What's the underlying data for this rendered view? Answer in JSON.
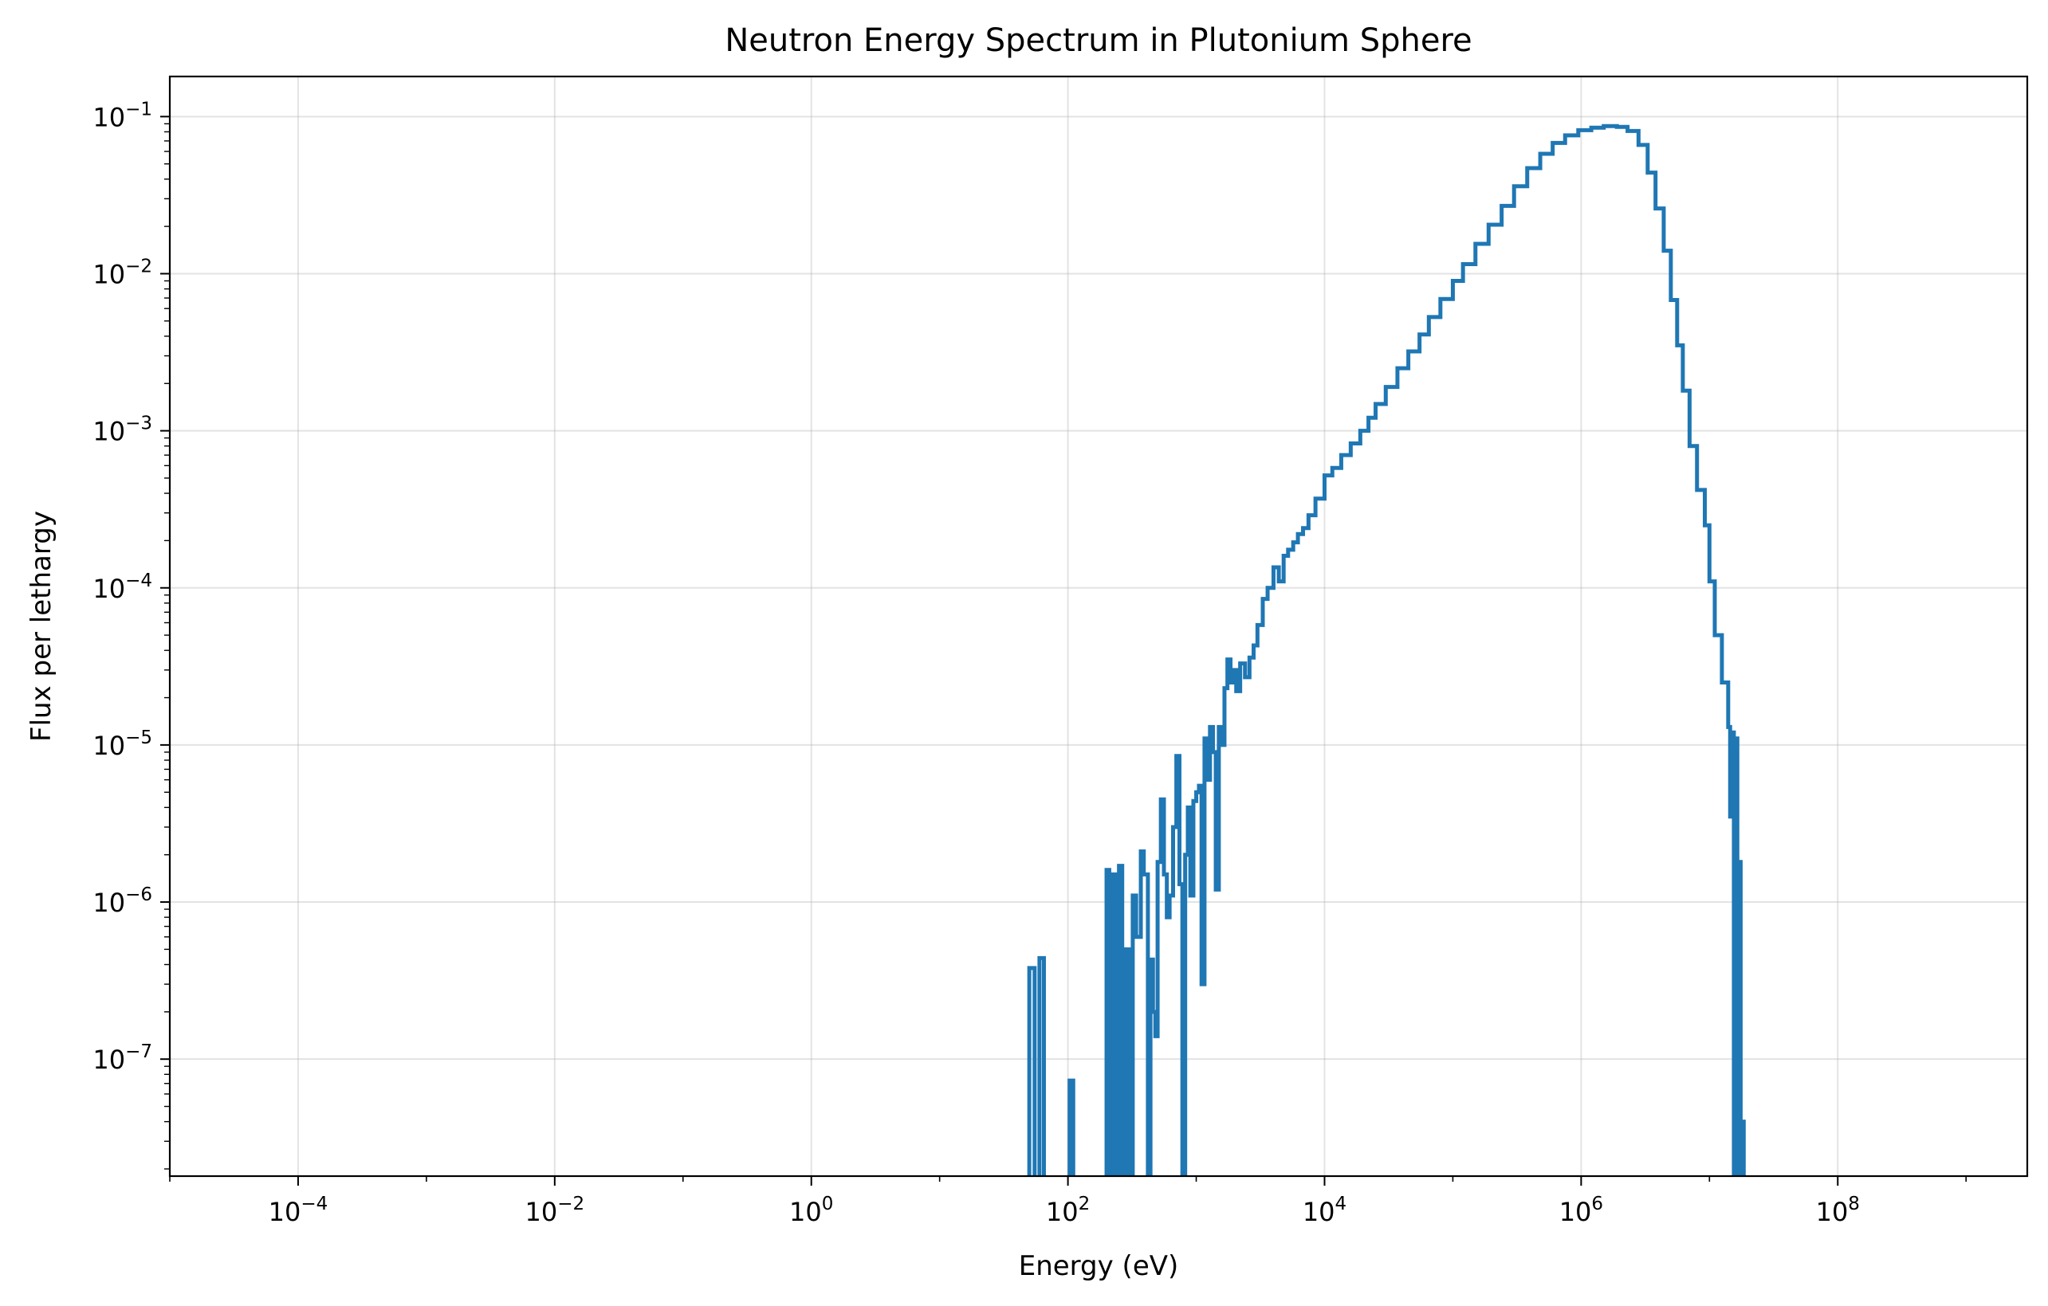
{
  "chart_data": {
    "type": "line",
    "title": "Neutron Energy Spectrum in Plutonium Sphere",
    "xlabel": "Energy (eV)",
    "ylabel": "Flux per lethargy",
    "xscale": "log",
    "yscale": "log",
    "xlim": [
      1e-05,
      3000000000.0
    ],
    "ylim": [
      1.8e-08,
      0.18
    ],
    "grid": true,
    "line_color": "#1f77b4",
    "x_ticks": [
      {
        "base": "10",
        "exp": "−4",
        "value": 0.0001
      },
      {
        "base": "10",
        "exp": "−2",
        "value": 0.01
      },
      {
        "base": "10",
        "exp": "0",
        "value": 1
      },
      {
        "base": "10",
        "exp": "2",
        "value": 100
      },
      {
        "base": "10",
        "exp": "4",
        "value": 10000
      },
      {
        "base": "10",
        "exp": "6",
        "value": 1000000
      },
      {
        "base": "10",
        "exp": "8",
        "value": 100000000
      }
    ],
    "y_ticks": [
      {
        "base": "10",
        "exp": "−1",
        "value": 0.1
      },
      {
        "base": "10",
        "exp": "−2",
        "value": 0.01
      },
      {
        "base": "10",
        "exp": "−3",
        "value": 0.001
      },
      {
        "base": "10",
        "exp": "−4",
        "value": 0.0001
      },
      {
        "base": "10",
        "exp": "−5",
        "value": 1e-05
      },
      {
        "base": "10",
        "exp": "−6",
        "value": 1e-06
      },
      {
        "base": "10",
        "exp": "−7",
        "value": 1e-07
      }
    ],
    "series": [
      {
        "values": [
          [
            50,
            0
          ],
          [
            50,
            3.8e-07
          ],
          [
            55,
            3.8e-07
          ],
          [
            55,
            0
          ],
          [
            60,
            0
          ],
          [
            60,
            4.4e-07
          ],
          [
            65,
            4.4e-07
          ],
          [
            65,
            0
          ],
          [
            103,
            0
          ],
          [
            103,
            7.3e-08
          ],
          [
            110,
            7.3e-08
          ],
          [
            110,
            0
          ],
          [
            200,
            0
          ],
          [
            200,
            1.6e-06
          ],
          [
            210,
            1.6e-06
          ],
          [
            210,
            0
          ],
          [
            225,
            0
          ],
          [
            225,
            1.5e-06
          ],
          [
            240,
            1.5e-06
          ],
          [
            240,
            0
          ],
          [
            250,
            0
          ],
          [
            250,
            1.7e-06
          ],
          [
            265,
            1.7e-06
          ],
          [
            265,
            0
          ],
          [
            280,
            0
          ],
          [
            280,
            5e-07
          ],
          [
            300,
            5e-07
          ],
          [
            300,
            0
          ],
          [
            320,
            0
          ],
          [
            320,
            1.1e-06
          ],
          [
            340,
            1.1e-06
          ],
          [
            340,
            6e-07
          ],
          [
            370,
            6e-07
          ],
          [
            370,
            2.1e-06
          ],
          [
            390,
            2.1e-06
          ],
          [
            390,
            1.5e-06
          ],
          [
            420,
            1.5e-06
          ],
          [
            420,
            0
          ],
          [
            440,
            0
          ],
          [
            440,
            4.3e-07
          ],
          [
            460,
            4.3e-07
          ],
          [
            460,
            2e-07
          ],
          [
            480,
            2e-07
          ],
          [
            480,
            1.4e-07
          ],
          [
            500,
            1.4e-07
          ],
          [
            500,
            1.8e-06
          ],
          [
            530,
            1.8e-06
          ],
          [
            530,
            4.5e-06
          ],
          [
            560,
            4.5e-06
          ],
          [
            560,
            1.5e-06
          ],
          [
            590,
            1.5e-06
          ],
          [
            590,
            8e-07
          ],
          [
            620,
            8e-07
          ],
          [
            620,
            1.1e-06
          ],
          [
            660,
            1.1e-06
          ],
          [
            660,
            3e-06
          ],
          [
            700,
            3e-06
          ],
          [
            700,
            8.5e-06
          ],
          [
            740,
            8.5e-06
          ],
          [
            740,
            1.3e-06
          ],
          [
            780,
            1.3e-06
          ],
          [
            780,
            0
          ],
          [
            820,
            0
          ],
          [
            820,
            2e-06
          ],
          [
            860,
            2e-06
          ],
          [
            860,
            4e-06
          ],
          [
            900,
            4e-06
          ],
          [
            900,
            1.1e-06
          ],
          [
            950,
            1.1e-06
          ],
          [
            950,
            4.4e-06
          ],
          [
            1000,
            4.4e-06
          ],
          [
            1000,
            5e-06
          ],
          [
            1050,
            5e-06
          ],
          [
            1050,
            5.5e-06
          ],
          [
            1100,
            5.5e-06
          ],
          [
            1100,
            3e-07
          ],
          [
            1160,
            3e-07
          ],
          [
            1160,
            1.1e-05
          ],
          [
            1220,
            1.1e-05
          ],
          [
            1220,
            6e-06
          ],
          [
            1280,
            6e-06
          ],
          [
            1280,
            1.3e-05
          ],
          [
            1350,
            1.3e-05
          ],
          [
            1350,
            9e-06
          ],
          [
            1420,
            9e-06
          ],
          [
            1420,
            1.2e-06
          ],
          [
            1500,
            1.2e-06
          ],
          [
            1500,
            1.3e-05
          ],
          [
            1580,
            1.3e-05
          ],
          [
            1580,
            1e-05
          ],
          [
            1660,
            1e-05
          ],
          [
            1660,
            2.3e-05
          ],
          [
            1750,
            2.3e-05
          ],
          [
            1750,
            3.5e-05
          ],
          [
            1850,
            3.5e-05
          ],
          [
            1850,
            2.5e-05
          ],
          [
            1950,
            2.5e-05
          ],
          [
            1950,
            3e-05
          ],
          [
            2050,
            3e-05
          ],
          [
            2050,
            2.2e-05
          ],
          [
            2200,
            2.2e-05
          ],
          [
            2200,
            3.3e-05
          ],
          [
            2400,
            3.3e-05
          ],
          [
            2400,
            2.7e-05
          ],
          [
            2600,
            2.7e-05
          ],
          [
            2600,
            3.6e-05
          ],
          [
            2800,
            3.6e-05
          ],
          [
            2800,
            4.3e-05
          ],
          [
            3000,
            4.3e-05
          ],
          [
            3000,
            5.8e-05
          ],
          [
            3300,
            5.8e-05
          ],
          [
            3300,
            8.5e-05
          ],
          [
            3600,
            8.5e-05
          ],
          [
            3600,
            0.0001
          ],
          [
            4000,
            0.0001
          ],
          [
            4000,
            0.000135
          ],
          [
            4400,
            0.000135
          ],
          [
            4400,
            0.00011
          ],
          [
            4800,
            0.00011
          ],
          [
            4800,
            0.00016
          ],
          [
            5200,
            0.00016
          ],
          [
            5200,
            0.000175
          ],
          [
            5700,
            0.000175
          ],
          [
            5700,
            0.000195
          ],
          [
            6200,
            0.000195
          ],
          [
            6200,
            0.00022
          ],
          [
            6800,
            0.00022
          ],
          [
            6800,
            0.00024
          ],
          [
            7500,
            0.00024
          ],
          [
            7500,
            0.00029
          ],
          [
            8500,
            0.00029
          ],
          [
            8500,
            0.00037
          ],
          [
            10000,
            0.00037
          ],
          [
            10000,
            0.00052
          ],
          [
            11500,
            0.00052
          ],
          [
            11500,
            0.00058
          ],
          [
            13500,
            0.00058
          ],
          [
            13500,
            0.0007
          ],
          [
            16000,
            0.0007
          ],
          [
            16000,
            0.00083
          ],
          [
            19000,
            0.00083
          ],
          [
            19000,
            0.001
          ],
          [
            22000,
            0.001
          ],
          [
            22000,
            0.00121
          ],
          [
            25000,
            0.00121
          ],
          [
            25000,
            0.00148
          ],
          [
            30000,
            0.00148
          ],
          [
            30000,
            0.0019
          ],
          [
            37000,
            0.0019
          ],
          [
            37000,
            0.0025
          ],
          [
            45000,
            0.0025
          ],
          [
            45000,
            0.0032
          ],
          [
            55000,
            0.0032
          ],
          [
            55000,
            0.0041
          ],
          [
            65000,
            0.0041
          ],
          [
            65000,
            0.0053
          ],
          [
            80000,
            0.0053
          ],
          [
            80000,
            0.0069
          ],
          [
            100000,
            0.0069
          ],
          [
            100000,
            0.009
          ],
          [
            120000,
            0.009
          ],
          [
            120000,
            0.0115
          ],
          [
            150000,
            0.0115
          ],
          [
            150000,
            0.0155
          ],
          [
            190000,
            0.0155
          ],
          [
            190000,
            0.0205
          ],
          [
            240000,
            0.0205
          ],
          [
            240000,
            0.027
          ],
          [
            300000,
            0.027
          ],
          [
            300000,
            0.036
          ],
          [
            380000,
            0.036
          ],
          [
            380000,
            0.047
          ],
          [
            480000,
            0.047
          ],
          [
            480000,
            0.058
          ],
          [
            600000,
            0.058
          ],
          [
            600000,
            0.068
          ],
          [
            750000,
            0.068
          ],
          [
            750000,
            0.076
          ],
          [
            950000,
            0.076
          ],
          [
            950000,
            0.082
          ],
          [
            1200000,
            0.082
          ],
          [
            1200000,
            0.085
          ],
          [
            1500000,
            0.085
          ],
          [
            1500000,
            0.087
          ],
          [
            1900000,
            0.087
          ],
          [
            1900000,
            0.086
          ],
          [
            2300000,
            0.086
          ],
          [
            2300000,
            0.081
          ],
          [
            2800000,
            0.081
          ],
          [
            2800000,
            0.066
          ],
          [
            3300000,
            0.066
          ],
          [
            3300000,
            0.044
          ],
          [
            3800000,
            0.044
          ],
          [
            3800000,
            0.026
          ],
          [
            4400000,
            0.026
          ],
          [
            4400000,
            0.014
          ],
          [
            5000000,
            0.014
          ],
          [
            5000000,
            0.0068
          ],
          [
            5600000,
            0.0068
          ],
          [
            5600000,
            0.0035
          ],
          [
            6200000,
            0.0035
          ],
          [
            6200000,
            0.0018
          ],
          [
            7000000,
            0.0018
          ],
          [
            7000000,
            0.0008
          ],
          [
            8000000,
            0.0008
          ],
          [
            8000000,
            0.00042
          ],
          [
            9200000,
            0.00042
          ],
          [
            9200000,
            0.00025
          ],
          [
            10000000,
            0.00025
          ],
          [
            10000000,
            0.00011
          ],
          [
            11000000,
            0.00011
          ],
          [
            11000000,
            5e-05
          ],
          [
            12500000,
            5e-05
          ],
          [
            12500000,
            2.5e-05
          ],
          [
            14000000,
            2.5e-05
          ],
          [
            14000000,
            1.3e-05
          ],
          [
            14500000,
            1.3e-05
          ],
          [
            14500000,
            3.5e-06
          ],
          [
            15000000,
            3.5e-06
          ],
          [
            15000000,
            1.2e-05
          ],
          [
            15500000,
            1.2e-05
          ],
          [
            15500000,
            0
          ],
          [
            16000000,
            0
          ],
          [
            16000000,
            1.1e-05
          ],
          [
            16500000,
            1.1e-05
          ],
          [
            16500000,
            0
          ],
          [
            17000000,
            0
          ],
          [
            17000000,
            1.8e-06
          ],
          [
            17500000,
            1.8e-06
          ],
          [
            17500000,
            0
          ],
          [
            18000000,
            0
          ],
          [
            18000000,
            4e-08
          ],
          [
            18500000,
            4e-08
          ],
          [
            18500000,
            0
          ]
        ]
      }
    ]
  }
}
